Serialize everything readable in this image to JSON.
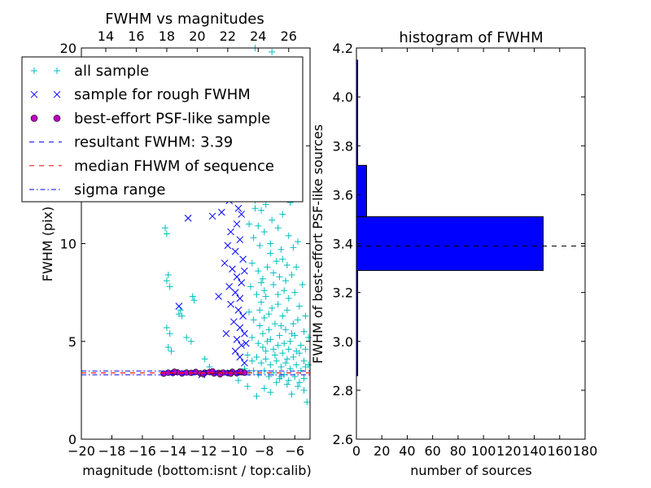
{
  "chart_data": [
    {
      "type": "scatter",
      "title": "FWHM vs magnitudes",
      "xlabel": "magnitude (bottom:isnt / top:calib)",
      "ylabel": "FWHM (pix)",
      "xlim": [
        -20,
        -5
      ],
      "ylim": [
        0,
        20
      ],
      "x_ticks": [
        -20,
        -18,
        -16,
        -14,
        -12,
        -10,
        -8,
        -6
      ],
      "x_tick_labels": [
        "−20",
        "−18",
        "−16",
        "−14",
        "−12",
        "−10",
        "−8",
        "−6"
      ],
      "top_x_ticks": [
        14,
        16,
        18,
        20,
        22,
        24,
        26
      ],
      "top_x_tick_labels": [
        "14",
        "16",
        "18",
        "20",
        "22",
        "24",
        "26"
      ],
      "top_x_offset": 32.4,
      "y_ticks": [
        0,
        5,
        10,
        15,
        20
      ],
      "y_tick_labels": [
        "0",
        "5",
        "10",
        "15",
        "20"
      ],
      "legend_position": "upper-left",
      "series": [
        {
          "name": "all sample",
          "marker": "+",
          "color": "#00bfbf",
          "points": [
            [
              -14.5,
              10.8
            ],
            [
              -14.4,
              10.5
            ],
            [
              -14.4,
              8.1
            ],
            [
              -14.3,
              8.4
            ],
            [
              -14.2,
              7.8
            ],
            [
              -13.6,
              6.4
            ],
            [
              -13.5,
              6.6
            ],
            [
              -13.4,
              6.3
            ],
            [
              -12.7,
              7.3
            ],
            [
              -12.6,
              7.1
            ],
            [
              -14.4,
              5.7
            ],
            [
              -14.2,
              5.4
            ],
            [
              -13.1,
              5.2
            ],
            [
              -12.8,
              5.0
            ],
            [
              -14.3,
              4.7
            ],
            [
              -14.1,
              4.5
            ],
            [
              -11.9,
              4.1
            ],
            [
              -11.6,
              3.7
            ],
            [
              -10.4,
              3.4
            ],
            [
              -9.7,
              3.0
            ],
            [
              -9.1,
              2.7
            ],
            [
              -8.5,
              2.2
            ],
            [
              -8.0,
              2.6
            ],
            [
              -7.6,
              2.4
            ],
            [
              -7.2,
              2.9
            ],
            [
              -6.9,
              3.2
            ],
            [
              -6.5,
              2.8
            ],
            [
              -6.2,
              2.3
            ],
            [
              -5.8,
              2.7
            ],
            [
              -5.4,
              2.5
            ],
            [
              -5.2,
              1.9
            ],
            [
              -8.6,
              20.0
            ],
            [
              -8.2,
              19.2
            ],
            [
              -7.9,
              18.4
            ],
            [
              -7.5,
              19.8
            ],
            [
              -7.2,
              18.0
            ],
            [
              -8.7,
              17.0
            ],
            [
              -8.3,
              16.2
            ],
            [
              -7.8,
              15.8
            ],
            [
              -7.4,
              16.9
            ],
            [
              -6.9,
              15.3
            ],
            [
              -6.6,
              14.8
            ],
            [
              -8.9,
              15.0
            ],
            [
              -8.5,
              14.2
            ],
            [
              -8.1,
              13.6
            ],
            [
              -7.7,
              13.1
            ],
            [
              -7.3,
              14.0
            ],
            [
              -7.0,
              12.4
            ],
            [
              -6.7,
              13.3
            ],
            [
              -6.3,
              12.1
            ],
            [
              -9.2,
              14.4
            ],
            [
              -9.0,
              12.9
            ],
            [
              -8.6,
              12.2
            ],
            [
              -8.2,
              11.7
            ],
            [
              -7.9,
              12.0
            ],
            [
              -7.5,
              11.2
            ],
            [
              -7.1,
              10.8
            ],
            [
              -6.8,
              11.5
            ],
            [
              -6.4,
              10.4
            ],
            [
              -6.1,
              9.8
            ],
            [
              -5.8,
              10.1
            ],
            [
              -9.0,
              11.0
            ],
            [
              -8.7,
              10.3
            ],
            [
              -8.3,
              9.9
            ],
            [
              -8.0,
              10.6
            ],
            [
              -7.6,
              9.5
            ],
            [
              -7.2,
              9.1
            ],
            [
              -6.9,
              9.7
            ],
            [
              -6.5,
              8.9
            ],
            [
              -6.2,
              8.4
            ],
            [
              -5.9,
              8.8
            ],
            [
              -5.5,
              7.9
            ],
            [
              -8.8,
              9.0
            ],
            [
              -8.4,
              8.6
            ],
            [
              -8.1,
              8.2
            ],
            [
              -7.8,
              8.8
            ],
            [
              -7.4,
              7.9
            ],
            [
              -7.0,
              8.3
            ],
            [
              -6.7,
              7.6
            ],
            [
              -6.4,
              7.2
            ],
            [
              -6.0,
              7.5
            ],
            [
              -5.7,
              6.8
            ],
            [
              -5.3,
              6.3
            ],
            [
              -8.9,
              7.8
            ],
            [
              -8.5,
              7.4
            ],
            [
              -8.2,
              7.0
            ],
            [
              -7.9,
              7.3
            ],
            [
              -7.5,
              6.7
            ],
            [
              -7.1,
              6.9
            ],
            [
              -6.8,
              6.3
            ],
            [
              -6.5,
              6.6
            ],
            [
              -6.1,
              5.9
            ],
            [
              -5.8,
              6.1
            ],
            [
              -5.4,
              5.5
            ],
            [
              -5.1,
              5.2
            ],
            [
              -9.0,
              6.5
            ],
            [
              -8.7,
              6.1
            ],
            [
              -8.3,
              5.8
            ],
            [
              -8.0,
              6.2
            ],
            [
              -7.7,
              5.6
            ],
            [
              -7.3,
              5.9
            ],
            [
              -7.0,
              5.3
            ],
            [
              -6.6,
              5.6
            ],
            [
              -6.3,
              5.0
            ],
            [
              -6.0,
              5.3
            ],
            [
              -5.6,
              4.8
            ],
            [
              -5.3,
              4.6
            ],
            [
              -8.8,
              5.2
            ],
            [
              -8.4,
              4.9
            ],
            [
              -8.1,
              4.7
            ],
            [
              -7.8,
              5.0
            ],
            [
              -7.4,
              4.6
            ],
            [
              -7.1,
              4.8
            ],
            [
              -6.8,
              4.4
            ],
            [
              -6.4,
              4.6
            ],
            [
              -6.1,
              4.2
            ],
            [
              -5.7,
              4.4
            ],
            [
              -5.4,
              4.0
            ],
            [
              -5.1,
              3.8
            ],
            [
              -9.1,
              4.3
            ],
            [
              -8.8,
              4.0
            ],
            [
              -8.5,
              4.2
            ],
            [
              -8.2,
              3.9
            ],
            [
              -7.9,
              4.1
            ],
            [
              -7.6,
              3.8
            ],
            [
              -7.2,
              4.0
            ],
            [
              -6.9,
              3.7
            ],
            [
              -6.6,
              3.9
            ],
            [
              -6.3,
              3.6
            ],
            [
              -5.9,
              3.8
            ],
            [
              -5.6,
              3.5
            ],
            [
              -5.3,
              3.7
            ],
            [
              -9.3,
              3.6
            ],
            [
              -9.0,
              3.4
            ],
            [
              -8.7,
              3.5
            ],
            [
              -8.4,
              3.3
            ],
            [
              -8.0,
              3.5
            ],
            [
              -7.7,
              3.2
            ],
            [
              -7.4,
              3.4
            ],
            [
              -7.0,
              3.1
            ],
            [
              -6.7,
              3.3
            ],
            [
              -6.4,
              3.0
            ],
            [
              -6.0,
              3.2
            ],
            [
              -5.7,
              2.9
            ],
            [
              -5.4,
              3.1
            ],
            [
              -8.6,
              11.8
            ],
            [
              -8.4,
              10.9
            ],
            [
              -8.2,
              8.0
            ],
            [
              -8.0,
              7.6
            ],
            [
              -7.7,
              6.4
            ],
            [
              -7.6,
              10.0
            ],
            [
              -7.4,
              8.5
            ],
            [
              -7.1,
              7.4
            ],
            [
              -6.8,
              9.2
            ],
            [
              -6.6,
              8.1
            ],
            [
              -8.3,
              6.6
            ],
            [
              -8.1,
              5.4
            ],
            [
              -7.9,
              4.5
            ],
            [
              -7.6,
              5.1
            ],
            [
              -7.3,
              4.3
            ],
            [
              -6.9,
              5.8
            ],
            [
              -6.7,
              4.9
            ],
            [
              -6.5,
              4.1
            ],
            [
              -6.2,
              5.4
            ],
            [
              -5.9,
              4.5
            ]
          ]
        },
        {
          "name": "sample for rough FWHM",
          "marker": "x",
          "color": "#0000ff",
          "points": [
            [
              -13.0,
              11.3
            ],
            [
              -11.4,
              11.4
            ],
            [
              -10.8,
              11.6
            ],
            [
              -10.3,
              12.2
            ],
            [
              -10.0,
              13.1
            ],
            [
              -9.7,
              11.8
            ],
            [
              -9.5,
              13.6
            ],
            [
              -9.8,
              11.0
            ],
            [
              -10.2,
              10.6
            ],
            [
              -10.4,
              9.9
            ],
            [
              -9.9,
              9.6
            ],
            [
              -9.6,
              10.2
            ],
            [
              -9.4,
              9.2
            ],
            [
              -10.6,
              9.0
            ],
            [
              -10.1,
              8.7
            ],
            [
              -9.8,
              8.3
            ],
            [
              -9.5,
              8.0
            ],
            [
              -10.3,
              7.8
            ],
            [
              -9.9,
              7.5
            ],
            [
              -9.6,
              7.2
            ],
            [
              -11.0,
              7.3
            ],
            [
              -10.2,
              6.9
            ],
            [
              -9.7,
              6.6
            ],
            [
              -9.4,
              6.3
            ],
            [
              -10.0,
              6.0
            ],
            [
              -9.6,
              5.7
            ],
            [
              -9.3,
              5.4
            ],
            [
              -9.8,
              5.1
            ],
            [
              -9.5,
              4.8
            ],
            [
              -9.9,
              4.5
            ],
            [
              -9.6,
              4.2
            ],
            [
              -9.3,
              3.9
            ],
            [
              -13.6,
              6.8
            ],
            [
              -12.1,
              3.3
            ],
            [
              -10.5,
              5.4
            ],
            [
              -10.1,
              12.5
            ],
            [
              -9.3,
              8.6
            ],
            [
              -9.2,
              4.9
            ],
            [
              -9.9,
              14.3
            ],
            [
              -9.5,
              11.5
            ]
          ]
        },
        {
          "name": "best-effort PSF-like sample",
          "marker": "o",
          "color": "#bf00bf",
          "points": [
            [
              -14.6,
              3.35
            ],
            [
              -14.3,
              3.4
            ],
            [
              -14.0,
              3.38
            ],
            [
              -13.7,
              3.42
            ],
            [
              -13.4,
              3.36
            ],
            [
              -13.1,
              3.41
            ],
            [
              -12.8,
              3.39
            ],
            [
              -12.5,
              3.44
            ],
            [
              -12.2,
              3.37
            ],
            [
              -11.9,
              3.4
            ],
            [
              -11.6,
              3.43
            ],
            [
              -11.3,
              3.36
            ],
            [
              -11.0,
              3.39
            ],
            [
              -10.7,
              3.41
            ],
            [
              -10.4,
              3.38
            ],
            [
              -10.1,
              3.45
            ],
            [
              -9.8,
              3.37
            ],
            [
              -9.5,
              3.42
            ],
            [
              -9.3,
              3.4
            ],
            [
              -12.0,
              3.33
            ],
            [
              -13.9,
              3.45
            ],
            [
              -11.4,
              3.47
            ],
            [
              -10.9,
              3.32
            ],
            [
              -10.2,
              3.35
            ],
            [
              -9.6,
              3.46
            ]
          ]
        }
      ],
      "hlines": [
        {
          "name": "resultant FWHM: 3.39",
          "y": 3.39,
          "color": "#0000ff",
          "style": "dashed"
        },
        {
          "name": "median FHWM of sequence",
          "y": 3.39,
          "color": "#ff0000",
          "style": "dashed"
        },
        {
          "name": "sigma range",
          "y": [
            3.29,
            3.49
          ],
          "color": "#0000ff",
          "style": "dashdot"
        }
      ]
    },
    {
      "type": "bar",
      "orientation": "horizontal",
      "title": "histogram of FWHM",
      "xlabel": "number of sources",
      "ylabel": "FWHM of best-effort PSF-like sources",
      "xlim": [
        0,
        180
      ],
      "ylim": [
        2.6,
        4.2
      ],
      "x_ticks": [
        0,
        20,
        40,
        60,
        80,
        100,
        120,
        140,
        160,
        180
      ],
      "x_tick_labels": [
        "0",
        "20",
        "40",
        "60",
        "80",
        "100",
        "120",
        "140",
        "160",
        "180"
      ],
      "y_ticks": [
        2.6,
        2.8,
        3.0,
        3.2,
        3.4,
        3.6,
        3.8,
        4.0,
        4.2
      ],
      "y_tick_labels": [
        "2.6",
        "2.8",
        "3.0",
        "3.2",
        "3.4",
        "3.6",
        "3.8",
        "4.0",
        "4.2"
      ],
      "color": "#0000ff",
      "bins": [
        {
          "low": 2.86,
          "high": 3.29,
          "count": 1
        },
        {
          "low": 3.29,
          "high": 3.51,
          "count": 147
        },
        {
          "low": 3.51,
          "high": 3.72,
          "count": 8
        },
        {
          "low": 3.72,
          "high": 4.15,
          "count": 1
        }
      ],
      "hline": {
        "y": 3.39,
        "color": "#000000",
        "style": "dashed"
      }
    }
  ]
}
